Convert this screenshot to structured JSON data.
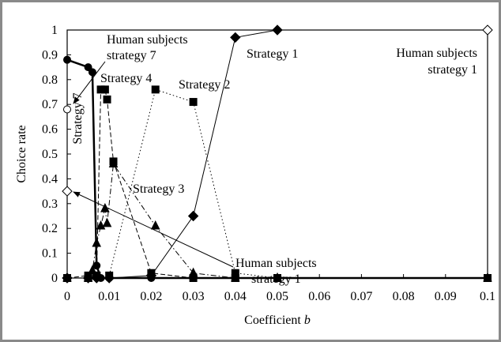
{
  "chart_data": {
    "type": "line",
    "y_label": "Choice rate",
    "x_label": [
      "Coefficient",
      "b"
    ],
    "xlim": [
      0,
      0.1
    ],
    "ylim": [
      0,
      1
    ],
    "xticks": [
      0,
      0.01,
      0.02,
      0.03,
      0.04,
      0.05,
      0.06,
      0.07,
      0.08,
      0.09,
      0.1
    ],
    "yticks": [
      0,
      0.1,
      0.2,
      0.3,
      0.4,
      0.5,
      0.6,
      0.7,
      0.8,
      0.9,
      1
    ],
    "grid": false,
    "series": [
      {
        "name": "Strategy 1",
        "color": "#000000",
        "marker": "diamond",
        "line_style": "solid",
        "line_width": 1,
        "x": [
          0,
          0.005,
          0.007,
          0.01,
          0.02,
          0.03,
          0.04,
          0.05
        ],
        "values": [
          0,
          0,
          0,
          0,
          0.01,
          0.25,
          0.97,
          1
        ]
      },
      {
        "name": "Strategy 2",
        "color": "#000000",
        "marker": "square",
        "line_style": "dotted",
        "line_width": 1,
        "x": [
          0,
          0.005,
          0.007,
          0.01,
          0.021,
          0.03,
          0.04,
          0.05,
          0.1
        ],
        "values": [
          0,
          0,
          0.01,
          0.01,
          0.76,
          0.71,
          0.02,
          0,
          0
        ]
      },
      {
        "name": "Strategy 3",
        "color": "#000000",
        "marker": "triangle",
        "line_style": "dashdot",
        "line_width": 1,
        "x": [
          0,
          0.005,
          0.006,
          0.007,
          0.008,
          0.009,
          0.0095,
          0.011,
          0.021,
          0.03,
          0.04,
          0.05,
          0.1
        ],
        "values": [
          0,
          0,
          0.03,
          0.14,
          0.21,
          0.28,
          0.22,
          0.46,
          0.21,
          0.02,
          0,
          0,
          0
        ]
      },
      {
        "name": "Strategy 4",
        "color": "#000000",
        "marker": "square",
        "line_style": "dashed",
        "line_width": 1,
        "x": [
          0,
          0.005,
          0.007,
          0.008,
          0.009,
          0.0095,
          0.011,
          0.02,
          0.03,
          0.04,
          0.05,
          0.1
        ],
        "values": [
          0,
          0.01,
          0.01,
          0.76,
          0.76,
          0.72,
          0.47,
          0.02,
          0,
          0,
          0,
          0
        ]
      },
      {
        "name": "Strategy 7",
        "color": "#000000",
        "marker": "circle",
        "line_style": "solid",
        "line_width": 2.5,
        "x": [
          0,
          0.005,
          0.006,
          0.007,
          0.008,
          0.01,
          0.02,
          0.03,
          0.04,
          0.05,
          0.1
        ],
        "values": [
          0.88,
          0.85,
          0.83,
          0.05,
          0,
          0,
          0,
          0,
          0,
          0,
          0
        ]
      }
    ],
    "human_subjects": {
      "x": [
        0,
        0,
        0.1
      ],
      "values": [
        0.68,
        0.35,
        1
      ],
      "markers": [
        "circle",
        "diamond",
        "diamond"
      ]
    },
    "annotations": [
      [
        "Human subjects",
        "strategy 7"
      ],
      [
        "Human subjects",
        "strategy 1"
      ],
      [
        "Human subjects",
        "strategy 1"
      ]
    ]
  }
}
